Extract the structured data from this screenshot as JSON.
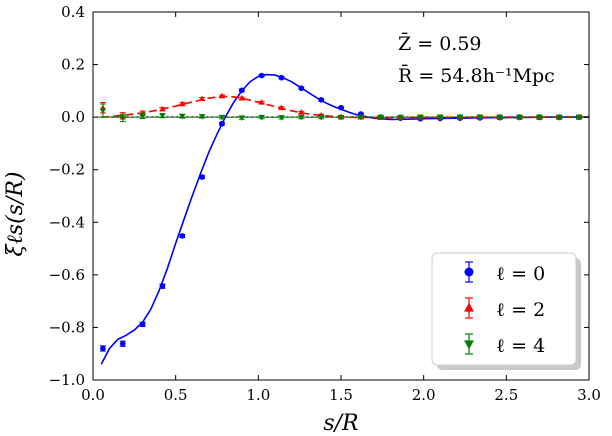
{
  "chart_data": {
    "type": "line",
    "xlabel": "s/R",
    "ylabel": "ξℓs(s/R)",
    "xlim": [
      0.0,
      3.0
    ],
    "ylim": [
      -1.0,
      0.4
    ],
    "xticks": [
      0.0,
      0.5,
      1.0,
      1.5,
      2.0,
      2.5,
      3.0
    ],
    "xtick_labels": [
      "0.0",
      "0.5",
      "1.0",
      "1.5",
      "2.0",
      "2.5",
      "3.0"
    ],
    "yticks": [
      0.4,
      0.2,
      0.0,
      -0.2,
      -0.4,
      -0.6,
      -0.8,
      -1.0
    ],
    "ytick_labels": [
      "0.4",
      "0.2",
      "0.0",
      "−0.2",
      "−0.4",
      "−0.6",
      "−0.8",
      "−1.0"
    ],
    "annotations": [
      "Z̄ = 0.59",
      "R̄ = 54.8h⁻¹Mpc"
    ],
    "legend_position": "lower-right",
    "series": [
      {
        "name": "ℓ = 0",
        "color": "#0000ff",
        "marker": "circle",
        "line_style": "solid",
        "points_x": [
          0.06,
          0.18,
          0.3,
          0.42,
          0.54,
          0.66,
          0.78,
          0.9,
          1.02,
          1.14,
          1.26,
          1.38,
          1.5,
          1.62,
          1.74,
          1.86,
          1.98,
          2.1,
          2.22,
          2.34,
          2.46,
          2.58,
          2.7,
          2.82,
          2.94
        ],
        "points_y": [
          -0.88,
          -0.862,
          -0.788,
          -0.643,
          -0.452,
          -0.228,
          -0.025,
          0.102,
          0.158,
          0.15,
          0.11,
          0.066,
          0.036,
          0.012,
          0.0,
          -0.004,
          -0.006,
          -0.005,
          -0.004,
          -0.003,
          -0.002,
          -0.001,
          -0.001,
          -0.001,
          0.0
        ],
        "errors": [
          0.01,
          0.01,
          0.008,
          0.008,
          0.006,
          0.005,
          0.005,
          0.005,
          0.004,
          0.004,
          0.004,
          0.004,
          0.003,
          0.003,
          0.003,
          0.003,
          0.003,
          0.003,
          0.003,
          0.003,
          0.003,
          0.003,
          0.003,
          0.003,
          0.003
        ],
        "curve_x": [
          0.05,
          0.1,
          0.15,
          0.2,
          0.25,
          0.3,
          0.35,
          0.4,
          0.45,
          0.5,
          0.55,
          0.6,
          0.65,
          0.7,
          0.75,
          0.8,
          0.85,
          0.9,
          0.95,
          1.0,
          1.05,
          1.1,
          1.15,
          1.2,
          1.25,
          1.3,
          1.35,
          1.4,
          1.45,
          1.5,
          1.55,
          1.6,
          1.7,
          1.8,
          1.9,
          2.0,
          2.2,
          2.4,
          2.6,
          2.8,
          3.0
        ],
        "curve_y": [
          -0.94,
          -0.88,
          -0.845,
          -0.83,
          -0.81,
          -0.78,
          -0.73,
          -0.66,
          -0.575,
          -0.48,
          -0.39,
          -0.3,
          -0.215,
          -0.135,
          -0.065,
          0.0,
          0.055,
          0.1,
          0.135,
          0.155,
          0.162,
          0.16,
          0.15,
          0.135,
          0.115,
          0.095,
          0.075,
          0.057,
          0.042,
          0.03,
          0.018,
          0.008,
          -0.004,
          -0.009,
          -0.008,
          -0.006,
          -0.004,
          -0.002,
          -0.001,
          0.0,
          0.0
        ]
      },
      {
        "name": "ℓ = 2",
        "color": "#ff0000",
        "marker": "triangle-up",
        "line_style": "dashed",
        "points_x": [
          0.06,
          0.18,
          0.3,
          0.42,
          0.54,
          0.66,
          0.78,
          0.9,
          1.02,
          1.14,
          1.26,
          1.38,
          1.5,
          1.62,
          1.74,
          1.86,
          1.98,
          2.1,
          2.22,
          2.34,
          2.46,
          2.58,
          2.7,
          2.82,
          2.94
        ],
        "points_y": [
          0.036,
          0.005,
          0.015,
          0.03,
          0.05,
          0.07,
          0.08,
          0.072,
          0.056,
          0.035,
          0.018,
          0.007,
          0.002,
          0.0,
          -0.002,
          -0.002,
          -0.001,
          -0.001,
          0.0,
          0.0,
          0.0,
          0.0,
          0.0,
          0.0,
          0.0
        ],
        "errors": [
          0.02,
          0.012,
          0.008,
          0.006,
          0.005,
          0.005,
          0.004,
          0.004,
          0.004,
          0.004,
          0.004,
          0.004,
          0.004,
          0.005,
          0.005,
          0.005,
          0.006,
          0.006,
          0.006,
          0.006,
          0.006,
          0.006,
          0.006,
          0.006,
          0.006
        ],
        "curve_x": [
          0.05,
          0.1,
          0.2,
          0.3,
          0.4,
          0.5,
          0.6,
          0.7,
          0.75,
          0.8,
          0.85,
          0.9,
          1.0,
          1.1,
          1.2,
          1.3,
          1.4,
          1.5,
          1.6,
          1.8,
          2.0,
          2.5,
          3.0
        ],
        "curve_y": [
          0.0,
          0.002,
          0.008,
          0.016,
          0.028,
          0.042,
          0.058,
          0.072,
          0.077,
          0.079,
          0.077,
          0.072,
          0.057,
          0.04,
          0.024,
          0.012,
          0.005,
          0.001,
          -0.001,
          -0.002,
          -0.001,
          0.0,
          0.0
        ]
      },
      {
        "name": "ℓ = 4",
        "color": "#008000",
        "marker": "triangle-down",
        "line_style": "dotted",
        "points_x": [
          0.06,
          0.18,
          0.3,
          0.42,
          0.54,
          0.66,
          0.78,
          0.9,
          1.02,
          1.14,
          1.26,
          1.38,
          1.5,
          1.62,
          1.74,
          1.86,
          1.98,
          2.1,
          2.22,
          2.34,
          2.46,
          2.58,
          2.7,
          2.82,
          2.94
        ],
        "points_y": [
          0.025,
          -0.003,
          0.005,
          0.006,
          0.004,
          0.003,
          0.0,
          -0.002,
          0.0,
          -0.001,
          0.0,
          0.0,
          -0.001,
          0.0,
          0.0,
          0.0,
          0.0,
          0.0,
          0.0,
          0.0,
          0.0,
          0.0,
          0.0,
          0.0,
          0.0
        ],
        "errors": [
          0.025,
          0.014,
          0.01,
          0.008,
          0.007,
          0.006,
          0.006,
          0.006,
          0.006,
          0.006,
          0.006,
          0.006,
          0.006,
          0.007,
          0.007,
          0.007,
          0.008,
          0.008,
          0.008,
          0.008,
          0.008,
          0.008,
          0.008,
          0.008,
          0.008
        ],
        "curve_x": [
          0.05,
          0.5,
          1.0,
          1.5,
          2.0,
          2.5,
          3.0
        ],
        "curve_y": [
          0.0,
          0.001,
          0.0,
          0.0,
          0.0,
          0.0,
          0.0
        ]
      }
    ]
  }
}
